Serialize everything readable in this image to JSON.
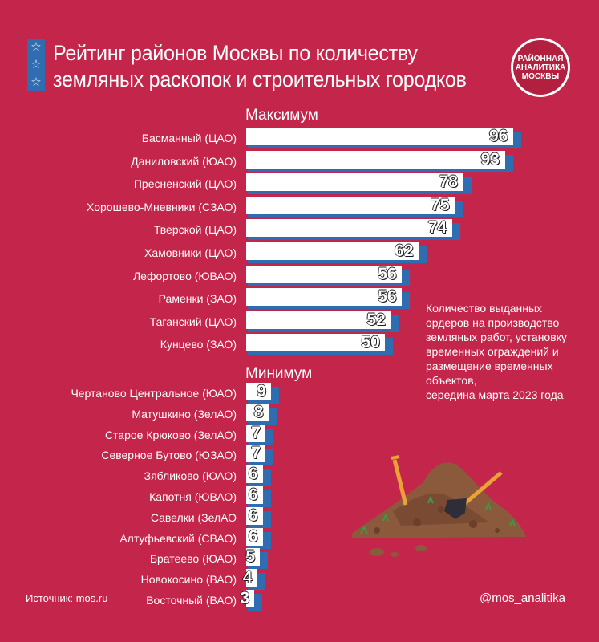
{
  "title_lines": [
    "Рейтинг районов Москвы по количеству",
    "земляных раскопок и строительных городков"
  ],
  "logo_lines": [
    "РАЙОННАЯ",
    "АНАЛИТИКА",
    "МОСКВЫ"
  ],
  "icons": {
    "stars": "star-icon",
    "illustration": "dirt-pile-shovels-icon"
  },
  "colors": {
    "background": "#c4254a",
    "bar": "#ffffff",
    "bar_shadow": "#2f6cb0",
    "accent": "#2f6cb0"
  },
  "chart_data": [
    {
      "type": "bar",
      "orientation": "horizontal",
      "title": "Максимум",
      "categories": [
        "Басманный (ЦАО)",
        "Даниловский (ЮАО)",
        "Пресненский (ЦАО)",
        "Хорошево-Мневники (СЗАО)",
        "Тверской (ЦАО)",
        "Хамовники (ЦАО)",
        "Лефортово (ЮВАО)",
        "Раменки (ЗАО)",
        "Таганский (ЦАО)",
        "Кунцево (ЗАО)"
      ],
      "values": [
        96,
        93,
        78,
        75,
        74,
        62,
        56,
        56,
        52,
        50
      ],
      "xlim": [
        0,
        96
      ]
    },
    {
      "type": "bar",
      "orientation": "horizontal",
      "title": "Минимум",
      "categories": [
        "Чертаново Центральное (ЮАО)",
        "Матушкино (ЗелАО)",
        "Старое Крюково (ЗелАО)",
        "Северное Бутово (ЮЗАО)",
        "Зябликово (ЮАО)",
        "Капотня (ЮВАО)",
        "Савелки (ЗелАО",
        "Алтуфьевский (СВАО)",
        "Братеево (ЮАО)",
        "Новокосино (ВАО)",
        "Восточный (ВАО)"
      ],
      "values": [
        9,
        8,
        7,
        7,
        6,
        6,
        6,
        6,
        5,
        4,
        3
      ],
      "xlim": [
        0,
        96
      ]
    }
  ],
  "note_lines": [
    "Количество выданных",
    "ордеров на производство",
    "земляных работ, установку",
    "временных ограждений и",
    "размещение временных",
    "объектов,",
    "середина марта 2023 года"
  ],
  "source": "Источник: mos.ru",
  "handle": "@mos_analitika"
}
